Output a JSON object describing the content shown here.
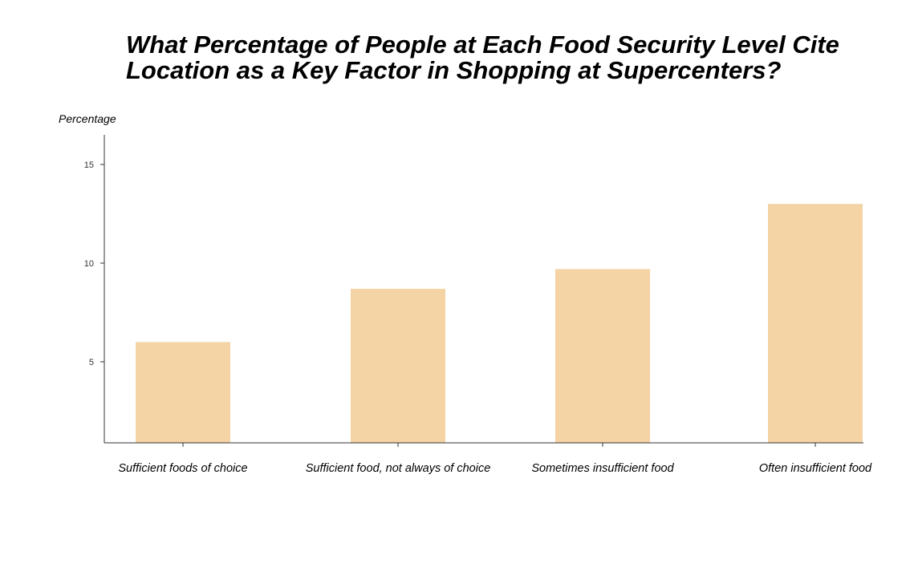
{
  "chart_data": {
    "type": "bar",
    "title": "What Percentage of People at Each Food Security Level Cite Location as a Key Factor in Shopping at Supercenters?",
    "ylabel": "Percentage",
    "xlabel": "",
    "categories": [
      "Sufficient foods of choice",
      "Sufficient food, not always of choice",
      "Sometimes insufficient food",
      "Often insufficient food"
    ],
    "values": [
      6.0,
      8.7,
      9.7,
      13.0
    ],
    "yticks": [
      5,
      10,
      15
    ],
    "ylim": [
      0,
      16.5
    ],
    "bar_color": "#f4d3a5",
    "grid": false,
    "legend": "none"
  }
}
